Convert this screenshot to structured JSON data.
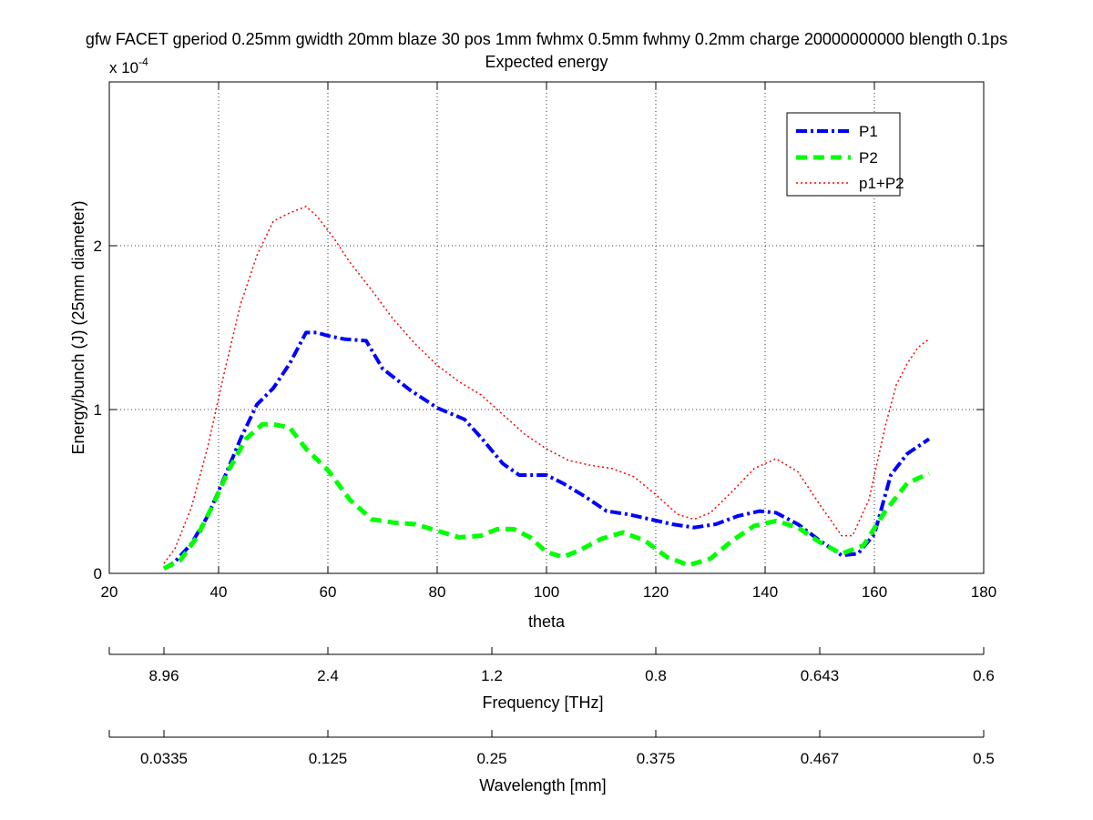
{
  "chart_data": {
    "type": "line",
    "title": "gfw FACET gperiod 0.25mm gwidth 20mm blaze 30 pos 1mm fwhmx 0.5mm fwhmy 0.2mm charge 20000000000 blength 0.1ps",
    "subtitle": "Expected energy",
    "xlabel": "theta",
    "ylabel": "Energy/bunch (J) (25mm diameter)",
    "y_exponent_label": "x 10",
    "y_exponent_power": "-4",
    "xlim": [
      20,
      180
    ],
    "ylim": [
      0,
      3
    ],
    "x_ticks": [
      20,
      40,
      60,
      80,
      100,
      120,
      140,
      160,
      180
    ],
    "y_ticks": [
      0,
      1,
      2
    ],
    "grid": true,
    "legend_position": "top-right",
    "series": [
      {
        "name": "P1",
        "color": "#0000ff",
        "style": "dash-dot",
        "x": [
          30,
          32,
          35,
          38,
          41,
          44,
          47,
          50,
          53,
          56,
          58,
          60,
          63,
          67,
          70,
          75,
          80,
          85,
          88,
          92,
          95,
          100,
          103,
          107,
          111,
          115,
          119,
          123,
          127,
          131,
          135,
          139,
          142,
          146,
          150,
          154,
          157,
          160,
          163,
          166,
          170
        ],
        "y": [
          0.03,
          0.07,
          0.18,
          0.35,
          0.58,
          0.82,
          1.03,
          1.13,
          1.28,
          1.47,
          1.47,
          1.45,
          1.43,
          1.42,
          1.25,
          1.12,
          1.01,
          0.94,
          0.83,
          0.67,
          0.6,
          0.6,
          0.55,
          0.47,
          0.38,
          0.36,
          0.33,
          0.3,
          0.28,
          0.3,
          0.35,
          0.38,
          0.37,
          0.3,
          0.2,
          0.11,
          0.12,
          0.24,
          0.6,
          0.73,
          0.82
        ]
      },
      {
        "name": "P2",
        "color": "#00ff00",
        "style": "dashed",
        "x": [
          30,
          33,
          36,
          39,
          42,
          45,
          48,
          50,
          53,
          56,
          60,
          64,
          68,
          72,
          76,
          80,
          84,
          88,
          91,
          94,
          97,
          100,
          103,
          106,
          110,
          114,
          118,
          122,
          126,
          130,
          134,
          138,
          142,
          146,
          150,
          154,
          158,
          162,
          166,
          170
        ],
        "y": [
          0.03,
          0.08,
          0.22,
          0.42,
          0.64,
          0.82,
          0.91,
          0.91,
          0.89,
          0.76,
          0.63,
          0.45,
          0.33,
          0.31,
          0.3,
          0.26,
          0.22,
          0.23,
          0.27,
          0.27,
          0.22,
          0.13,
          0.1,
          0.14,
          0.21,
          0.25,
          0.2,
          0.1,
          0.05,
          0.09,
          0.2,
          0.29,
          0.32,
          0.28,
          0.19,
          0.12,
          0.17,
          0.38,
          0.55,
          0.61
        ]
      },
      {
        "name": "p1+P2",
        "color": "#ff0000",
        "style": "dotted",
        "x": [
          30,
          32,
          35,
          38,
          41,
          44,
          47,
          50,
          53,
          56,
          58,
          61,
          64,
          68,
          72,
          76,
          80,
          84,
          88,
          92,
          96,
          100,
          104,
          108,
          112,
          116,
          120,
          124,
          127,
          130,
          134,
          138,
          142,
          146,
          150,
          154,
          156,
          159,
          162,
          164,
          166,
          168,
          170
        ],
        "y": [
          0.06,
          0.15,
          0.4,
          0.77,
          1.22,
          1.64,
          1.94,
          2.15,
          2.2,
          2.24,
          2.18,
          2.05,
          1.9,
          1.73,
          1.55,
          1.4,
          1.27,
          1.17,
          1.09,
          0.97,
          0.85,
          0.76,
          0.69,
          0.66,
          0.64,
          0.59,
          0.48,
          0.36,
          0.33,
          0.37,
          0.5,
          0.64,
          0.7,
          0.62,
          0.42,
          0.23,
          0.23,
          0.45,
          0.9,
          1.15,
          1.28,
          1.38,
          1.43
        ]
      }
    ],
    "secondary_axes": [
      {
        "label": "Frequency [THz]",
        "tick_labels": [
          "8.96",
          "2.4",
          "1.2",
          "0.8",
          "0.643",
          "0.6"
        ]
      },
      {
        "label": "Wavelength [mm]",
        "tick_labels": [
          "0.0335",
          "0.125",
          "0.25",
          "0.375",
          "0.467",
          "0.5"
        ]
      }
    ]
  }
}
